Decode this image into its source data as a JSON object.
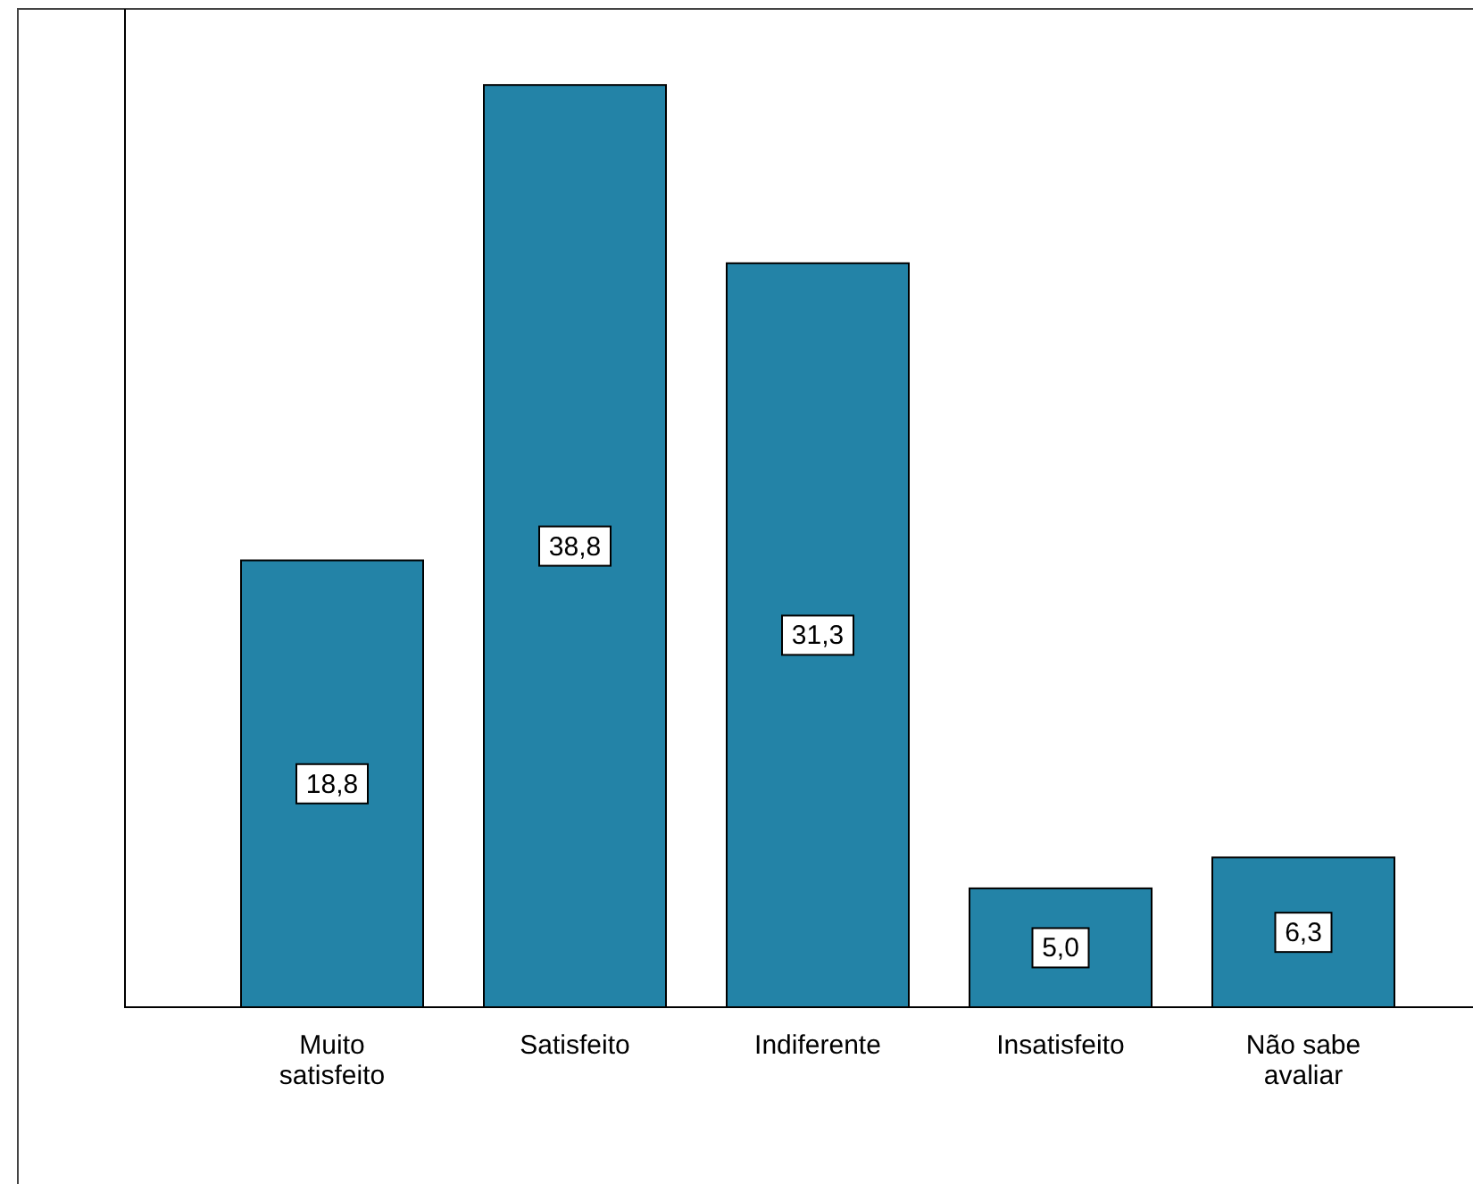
{
  "chart_data": {
    "type": "bar",
    "categories": [
      "Muito satisfeito",
      "Satisfeito",
      "Indiferente",
      "Insatisfeito",
      "Não sabe avaliar"
    ],
    "values": [
      18.8,
      38.8,
      31.3,
      5.0,
      6.3
    ],
    "value_labels": [
      "18,8",
      "38,8",
      "31,3",
      "5,0",
      "6,3"
    ],
    "color": "#2383a7",
    "ylim": [
      0,
      42
    ],
    "tick_labels": "x"
  }
}
